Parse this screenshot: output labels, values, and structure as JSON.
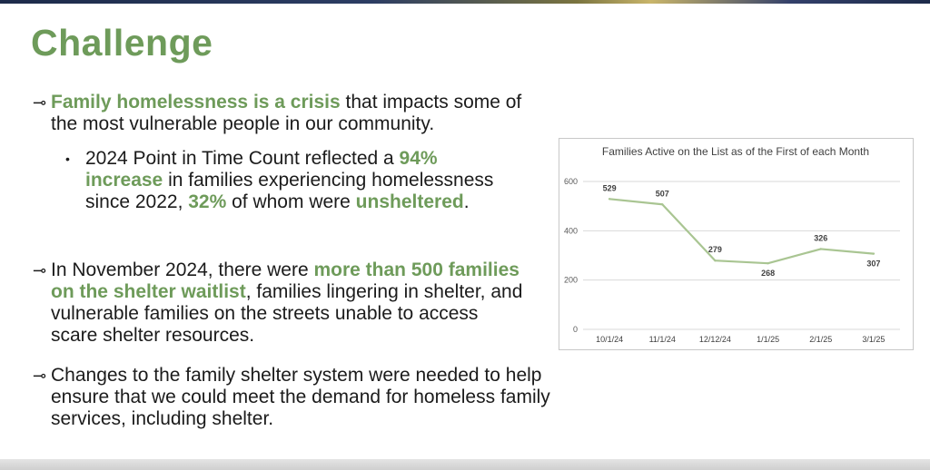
{
  "slide": {
    "title": "Challenge",
    "bullet1": {
      "hl": "Family homelessness is a crisis",
      "rest": " that impacts some of the most vulnerable people in our community."
    },
    "sub1": {
      "a": "2024 Point in Time Count reflected a ",
      "b": "94% increase",
      "c": " in families experiencing homelessness since 2022, ",
      "d": "32%",
      "e": " of whom were ",
      "f": "unsheltered",
      "g": "."
    },
    "bullet2": {
      "a": "In November 2024, there were ",
      "b": "more than 500 families on the shelter waitlist",
      "c": ", families lingering in shelter, and vulnerable families on the streets unable to access scare shelter resources."
    },
    "bullet3": {
      "text": "Changes to the family shelter system were needed to help ensure that we could meet the demand for homeless family services, including shelter."
    },
    "key_glyph": "⊸",
    "dot_glyph": "•"
  },
  "colors": {
    "accent": "#6e9b5a",
    "text": "#1b1b1b",
    "line": "#a9c592"
  },
  "chart_data": {
    "type": "line",
    "title": "Families Active on the List as of the First of each Month",
    "categories": [
      "10/1/24",
      "11/1/24",
      "12/12/24",
      "1/1/25",
      "2/1/25",
      "3/1/25"
    ],
    "series": [
      {
        "values": [
          529,
          507,
          279,
          268,
          326,
          307
        ]
      }
    ],
    "data_labels": [
      "529",
      "507",
      "279",
      "268",
      "326",
      "307"
    ],
    "yticks": [
      "0",
      "200",
      "400",
      "600"
    ],
    "ylim": [
      0,
      600
    ],
    "grid": true,
    "xlabel": "",
    "ylabel": ""
  }
}
